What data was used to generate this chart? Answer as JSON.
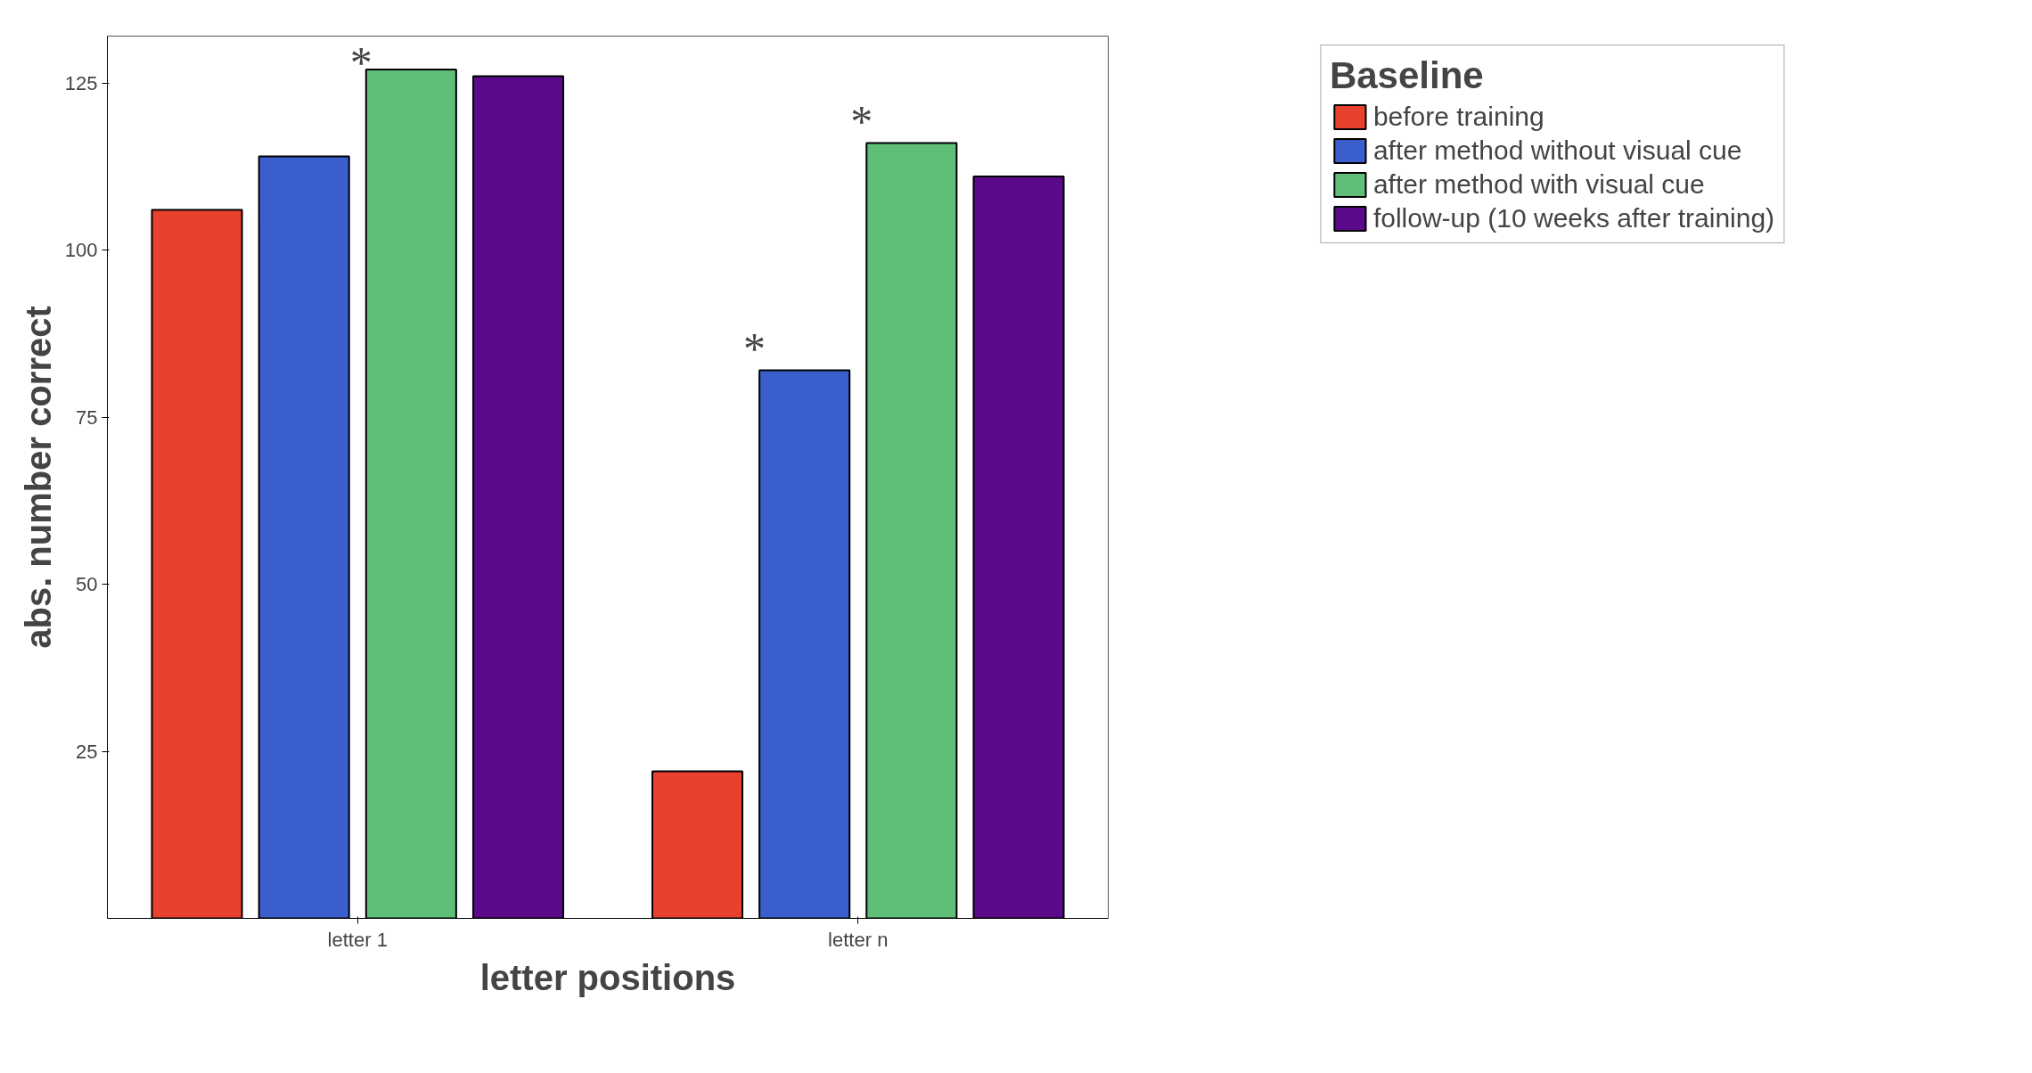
{
  "chart_data": {
    "type": "bar",
    "xlabel": "letter positions",
    "ylabel": "abs. number correct",
    "legend_title": "Baseline",
    "categories": [
      "letter 1",
      "letter n"
    ],
    "series": [
      {
        "name": "before training",
        "color": "#e8422f",
        "values": [
          106,
          22
        ]
      },
      {
        "name": "after method without visual cue",
        "color": "#3a5fcd",
        "values": [
          114,
          82
        ]
      },
      {
        "name": "after method with visual cue",
        "color": "#5fbf78",
        "values": [
          127,
          116
        ]
      },
      {
        "name": "follow-up (10 weeks after training)",
        "color": "#5a0a8a",
        "values": [
          126,
          111
        ]
      }
    ],
    "ylim": [
      0,
      132
    ],
    "yticks": [
      25,
      50,
      75,
      100,
      125
    ],
    "grid": false,
    "legend": "top right",
    "annotations": [
      "*",
      "*",
      "*"
    ]
  }
}
